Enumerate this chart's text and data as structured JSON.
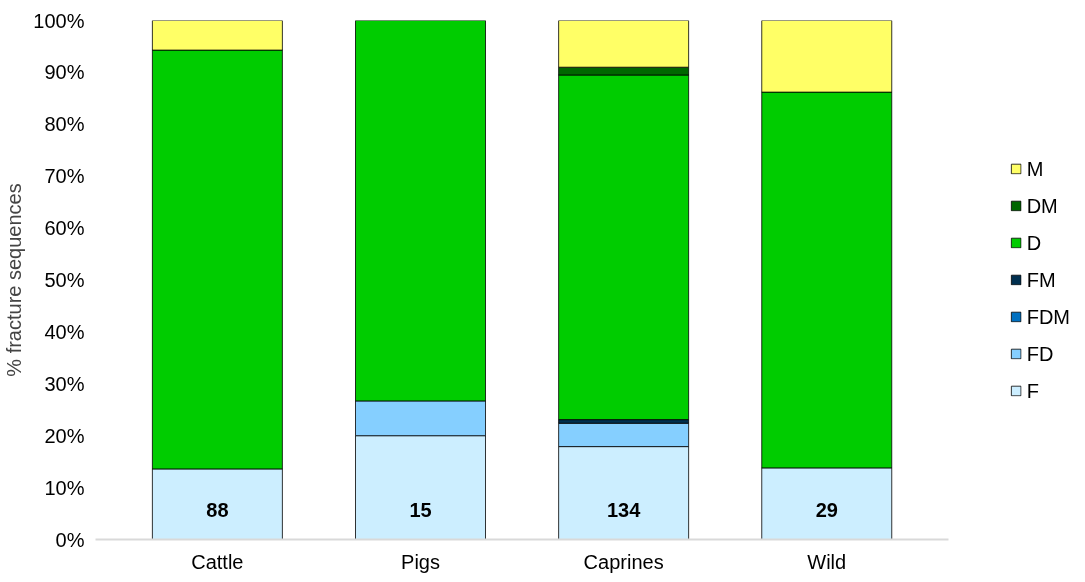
{
  "chart_data": {
    "type": "bar",
    "stacked": true,
    "ylabel": "% fracture sequences",
    "categories": [
      "Cattle",
      "Pigs",
      "Caprines",
      "Wild"
    ],
    "series": [
      {
        "name": "F",
        "color": "#cceeff",
        "values": [
          13.6,
          20.0,
          17.9,
          13.8
        ]
      },
      {
        "name": "FD",
        "color": "#85cfff",
        "values": [
          0,
          6.7,
          4.5,
          0
        ]
      },
      {
        "name": "FDM",
        "color": "#0070c0",
        "values": [
          0,
          0,
          0,
          0
        ]
      },
      {
        "name": "FM",
        "color": "#002f4f",
        "values": [
          0,
          0,
          0.7,
          0
        ]
      },
      {
        "name": "D",
        "color": "#00cc00",
        "values": [
          80.7,
          73.3,
          66.4,
          72.4
        ]
      },
      {
        "name": "DM",
        "color": "#006600",
        "values": [
          0,
          0,
          1.5,
          0
        ]
      },
      {
        "name": "M",
        "color": "#ffff66",
        "values": [
          5.7,
          0,
          9.0,
          13.8
        ]
      }
    ],
    "ylim": [
      0,
      100
    ],
    "yticks": [
      {
        "value": 0,
        "label": "0%"
      },
      {
        "value": 10,
        "label": "10%"
      },
      {
        "value": 20,
        "label": "20%"
      },
      {
        "value": 30,
        "label": "30%"
      },
      {
        "value": 40,
        "label": "40%"
      },
      {
        "value": 50,
        "label": "50%"
      },
      {
        "value": 60,
        "label": "60%"
      },
      {
        "value": 70,
        "label": "70%"
      },
      {
        "value": 80,
        "label": "80%"
      },
      {
        "value": 90,
        "label": "90%"
      },
      {
        "value": 100,
        "label": "100%"
      }
    ],
    "annotations": [
      "88",
      "15",
      "134",
      "29"
    ],
    "grid": false,
    "legend": "right"
  }
}
